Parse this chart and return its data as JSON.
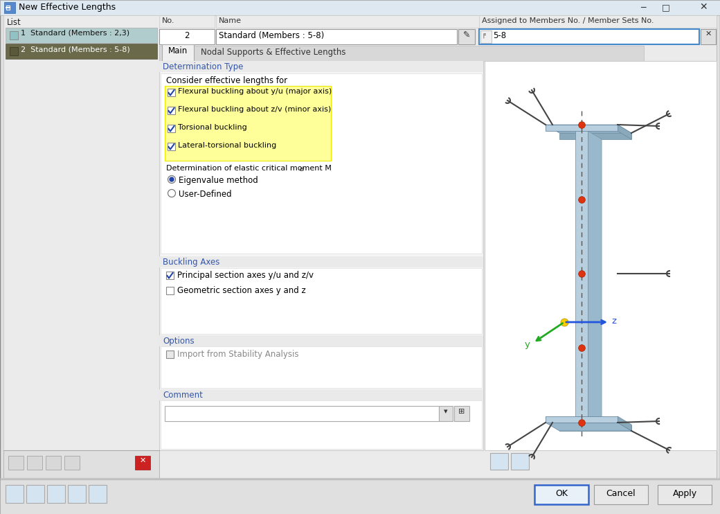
{
  "title": "New Effective Lengths",
  "bg_color": "#e8e8e8",
  "white": "#ffffff",
  "no_value": "2",
  "name_value": "Standard (Members : 5-8)",
  "assigned_value": "5-8",
  "checkboxes_yellow": [
    "Flexural buckling about y/u (major axis)",
    "Flexural buckling about z/v (minor axis)",
    "Torsional buckling",
    "Lateral-torsional buckling"
  ],
  "radio_options": [
    "Eigenvalue method",
    "User-Defined"
  ],
  "radio_selected": 0,
  "buckling_checkboxes": [
    {
      "text": "Principal section axes y/u and z/v",
      "checked": true
    },
    {
      "text": "Geometric section axes y and z",
      "checked": false
    }
  ],
  "options_checkboxes": [
    {
      "text": "Import from Stability Analysis",
      "checked": false
    }
  ],
  "beam_face": "#b8cfe0",
  "beam_side": "#9ab8cc",
  "beam_side2": "#8aaabb",
  "beam_edge": "#6888a0",
  "red_dot": "#dd3311",
  "yellow_dot": "#ffcc00",
  "axis_y_color": "#22aa22",
  "axis_z_color": "#2255dd",
  "support_color": "#444444",
  "dashed_color": "#555555"
}
